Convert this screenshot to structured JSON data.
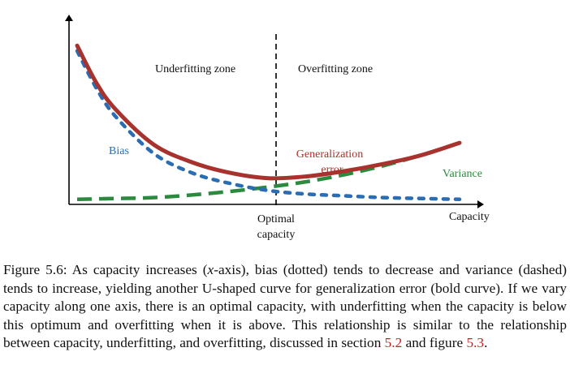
{
  "figure": {
    "zone_left": "Underfitting zone",
    "zone_right": "Overfitting zone",
    "bias_label": "Bias",
    "generalization_label_1": "Generalization",
    "generalization_label_2": "error",
    "variance_label": "Variance",
    "optimal_label_1": "Optimal",
    "optimal_label_2": "capacity",
    "x_axis_label": "Capacity",
    "colors": {
      "bias": "#2a6db3",
      "generalization": "#a8322d",
      "variance": "#2b8a3e",
      "axis": "#000000"
    }
  },
  "chart_data": {
    "type": "line",
    "xlabel": "Capacity",
    "ylabel": "",
    "series": [
      {
        "name": "Bias",
        "style": "dotted",
        "x": [
          0,
          0.05,
          0.1,
          0.2,
          0.3,
          0.4,
          0.5,
          0.6,
          0.7,
          0.8,
          0.9,
          1.0
        ],
        "y": [
          0.85,
          0.64,
          0.48,
          0.27,
          0.16,
          0.1,
          0.06,
          0.04,
          0.03,
          0.02,
          0.015,
          0.01
        ]
      },
      {
        "name": "Variance",
        "style": "dashed",
        "x": [
          0,
          0.1,
          0.2,
          0.3,
          0.4,
          0.5,
          0.6,
          0.7,
          0.8,
          0.9,
          1.0
        ],
        "y": [
          0.01,
          0.015,
          0.02,
          0.035,
          0.055,
          0.08,
          0.11,
          0.15,
          0.2,
          0.26,
          0.33
        ]
      },
      {
        "name": "Generalization error",
        "style": "bold",
        "x": [
          0,
          0.05,
          0.1,
          0.2,
          0.3,
          0.4,
          0.5,
          0.6,
          0.7,
          0.8,
          0.9,
          1.0
        ],
        "y": [
          0.88,
          0.67,
          0.52,
          0.32,
          0.22,
          0.16,
          0.13,
          0.14,
          0.17,
          0.21,
          0.26,
          0.33
        ]
      }
    ],
    "annotations": [
      "Underfitting zone",
      "Overfitting zone",
      "Optimal capacity"
    ],
    "optimal_capacity_x": 0.5
  },
  "caption": {
    "figure_label": "Figure 5.6:",
    "t1": " As capacity increases (",
    "xvar": "x",
    "t2": "-axis), bias (dotted) tends to decrease and variance (dashed) tends to increase, yielding another U-shaped curve for generalization error (bold curve). If we vary capacity along one axis, there is an optimal capacity, with underfitting when the capacity is below this optimum and overfitting when it is above. This relationship is similar to the relationship between capacity, underfitting, and overfitting, discussed in section ",
    "ref_section": "5.2",
    "t3": " and figure ",
    "ref_figure": "5.3",
    "t4": "."
  }
}
